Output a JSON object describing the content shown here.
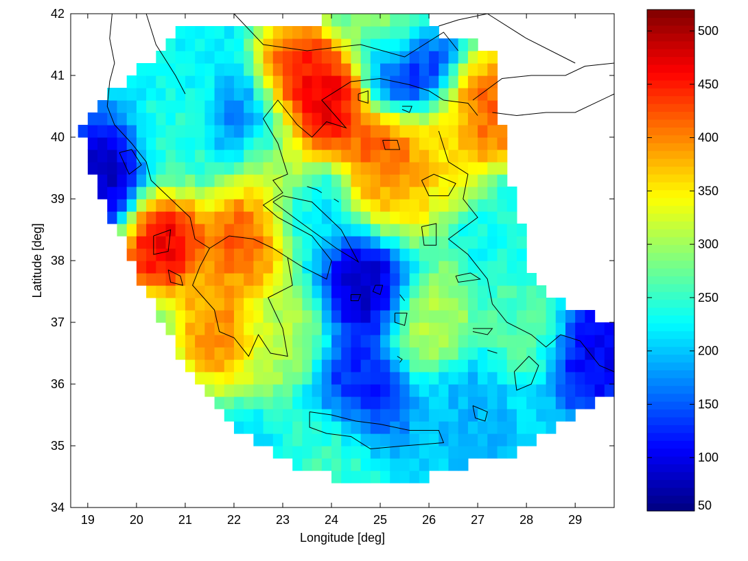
{
  "chart_data": {
    "type": "heatmap",
    "title": "",
    "xlabel": "Longitude [deg]",
    "ylabel": "Latitude [deg]",
    "xlim": [
      18.65,
      29.8
    ],
    "ylim": [
      34,
      42
    ],
    "xticks": [
      19,
      20,
      21,
      22,
      23,
      24,
      25,
      26,
      27,
      28,
      29
    ],
    "yticks": [
      34,
      35,
      36,
      37,
      38,
      39,
      40,
      41,
      42
    ],
    "colormap": "jet",
    "colorbar": {
      "range": [
        50,
        520
      ],
      "ticks": [
        50,
        100,
        150,
        200,
        250,
        300,
        350,
        400,
        450,
        500
      ]
    },
    "grid": false,
    "hotspots": [
      {
        "lon": 20.5,
        "lat": 38.4,
        "value": 500
      },
      {
        "lon": 22.3,
        "lat": 38.4,
        "value": 450
      },
      {
        "lon": 23.8,
        "lat": 40.5,
        "value": 500
      },
      {
        "lon": 23.3,
        "lat": 40.9,
        "value": 470
      },
      {
        "lon": 25.2,
        "lat": 39.6,
        "value": 460
      },
      {
        "lon": 27.2,
        "lat": 40.4,
        "value": 440
      },
      {
        "lon": 21.7,
        "lat": 36.9,
        "value": 420
      },
      {
        "lon": 24.8,
        "lat": 37.7,
        "value": 60
      },
      {
        "lon": 19.4,
        "lat": 39.3,
        "value": 60
      },
      {
        "lon": 24.6,
        "lat": 35.9,
        "value": 110
      },
      {
        "lon": 29.4,
        "lat": 36.5,
        "value": 90
      },
      {
        "lon": 25.6,
        "lat": 41.2,
        "value": 90
      },
      {
        "lon": 22.4,
        "lat": 40.2,
        "value": 140
      },
      {
        "lon": 26.0,
        "lat": 37.1,
        "value": 320
      },
      {
        "lon": 25.3,
        "lat": 39.0,
        "value": 360
      },
      {
        "lon": 22.8,
        "lat": 39.5,
        "value": 360
      },
      {
        "lon": 26.3,
        "lat": 39.8,
        "value": 360
      },
      {
        "lon": 25.3,
        "lat": 41.9,
        "value": 340
      },
      {
        "lon": 22.9,
        "lat": 36.8,
        "value": 320
      },
      {
        "lon": 20.8,
        "lat": 39.8,
        "value": 250
      },
      {
        "lon": 24.0,
        "lat": 34.9,
        "value": 260
      },
      {
        "lon": 27.9,
        "lat": 38.5,
        "value": 240
      },
      {
        "lon": 28.0,
        "lat": 37.0,
        "value": 270
      },
      {
        "lon": 26.8,
        "lat": 35.5,
        "value": 190
      },
      {
        "lon": 21.0,
        "lat": 41.0,
        "value": 230
      },
      {
        "lon": 23.5,
        "lat": 38.8,
        "value": 210
      }
    ],
    "background_value": 215
  }
}
